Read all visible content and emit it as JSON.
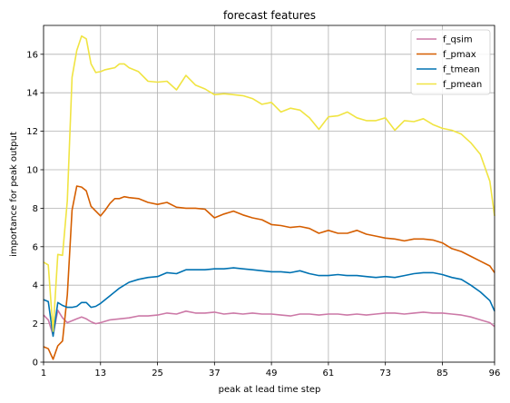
{
  "chart_data": {
    "type": "line",
    "title": "forecast features",
    "xlabel": "peak at lead time step",
    "ylabel": "importance for peak output",
    "xlim": [
      1,
      96
    ],
    "ylim": [
      0,
      17.5
    ],
    "xticks": [
      1,
      13,
      25,
      37,
      49,
      61,
      73,
      85,
      96
    ],
    "yticks": [
      0,
      2,
      4,
      6,
      8,
      10,
      12,
      14,
      16
    ],
    "grid": true,
    "legend_position": "top-right",
    "series": [
      {
        "name": "f_qsim",
        "color": "#cc79a7",
        "points": [
          [
            1,
            2.45
          ],
          [
            2,
            2.2
          ],
          [
            3,
            1.4
          ],
          [
            4,
            2.7
          ],
          [
            5,
            2.3
          ],
          [
            6,
            2.05
          ],
          [
            7,
            2.15
          ],
          [
            8,
            2.25
          ],
          [
            9,
            2.35
          ],
          [
            10,
            2.25
          ],
          [
            11,
            2.1
          ],
          [
            12,
            2.0
          ],
          [
            13,
            2.05
          ],
          [
            15,
            2.2
          ],
          [
            17,
            2.25
          ],
          [
            19,
            2.3
          ],
          [
            21,
            2.4
          ],
          [
            23,
            2.4
          ],
          [
            25,
            2.45
          ],
          [
            27,
            2.55
          ],
          [
            29,
            2.5
          ],
          [
            31,
            2.65
          ],
          [
            33,
            2.55
          ],
          [
            35,
            2.55
          ],
          [
            37,
            2.6
          ],
          [
            39,
            2.5
          ],
          [
            41,
            2.55
          ],
          [
            43,
            2.5
          ],
          [
            45,
            2.55
          ],
          [
            47,
            2.5
          ],
          [
            49,
            2.5
          ],
          [
            51,
            2.45
          ],
          [
            53,
            2.4
          ],
          [
            55,
            2.5
          ],
          [
            57,
            2.5
          ],
          [
            59,
            2.45
          ],
          [
            61,
            2.5
          ],
          [
            63,
            2.5
          ],
          [
            65,
            2.45
          ],
          [
            67,
            2.5
          ],
          [
            69,
            2.45
          ],
          [
            71,
            2.5
          ],
          [
            73,
            2.55
          ],
          [
            75,
            2.55
          ],
          [
            77,
            2.5
          ],
          [
            79,
            2.55
          ],
          [
            81,
            2.6
          ],
          [
            83,
            2.55
          ],
          [
            85,
            2.55
          ],
          [
            87,
            2.5
          ],
          [
            89,
            2.45
          ],
          [
            91,
            2.35
          ],
          [
            93,
            2.2
          ],
          [
            95,
            2.05
          ],
          [
            96,
            1.85
          ]
        ]
      },
      {
        "name": "f_pmax",
        "color": "#d55e00",
        "points": [
          [
            1,
            0.8
          ],
          [
            2,
            0.7
          ],
          [
            3,
            0.15
          ],
          [
            4,
            0.85
          ],
          [
            5,
            1.1
          ],
          [
            6,
            3.5
          ],
          [
            7,
            7.9
          ],
          [
            8,
            9.15
          ],
          [
            9,
            9.1
          ],
          [
            10,
            8.9
          ],
          [
            11,
            8.1
          ],
          [
            12,
            7.85
          ],
          [
            13,
            7.6
          ],
          [
            14,
            7.9
          ],
          [
            15,
            8.25
          ],
          [
            16,
            8.5
          ],
          [
            17,
            8.5
          ],
          [
            18,
            8.6
          ],
          [
            19,
            8.55
          ],
          [
            21,
            8.5
          ],
          [
            23,
            8.3
          ],
          [
            25,
            8.2
          ],
          [
            27,
            8.3
          ],
          [
            29,
            8.05
          ],
          [
            31,
            8.0
          ],
          [
            33,
            8.0
          ],
          [
            35,
            7.95
          ],
          [
            37,
            7.5
          ],
          [
            39,
            7.7
          ],
          [
            41,
            7.85
          ],
          [
            43,
            7.65
          ],
          [
            45,
            7.5
          ],
          [
            47,
            7.4
          ],
          [
            49,
            7.15
          ],
          [
            51,
            7.1
          ],
          [
            53,
            7.0
          ],
          [
            55,
            7.05
          ],
          [
            57,
            6.95
          ],
          [
            59,
            6.7
          ],
          [
            61,
            6.85
          ],
          [
            63,
            6.7
          ],
          [
            65,
            6.7
          ],
          [
            67,
            6.85
          ],
          [
            69,
            6.65
          ],
          [
            71,
            6.55
          ],
          [
            73,
            6.45
          ],
          [
            75,
            6.4
          ],
          [
            77,
            6.3
          ],
          [
            79,
            6.4
          ],
          [
            81,
            6.4
          ],
          [
            83,
            6.35
          ],
          [
            85,
            6.2
          ],
          [
            87,
            5.9
          ],
          [
            89,
            5.75
          ],
          [
            91,
            5.5
          ],
          [
            93,
            5.25
          ],
          [
            95,
            5.0
          ],
          [
            96,
            4.65
          ]
        ]
      },
      {
        "name": "f_tmean",
        "color": "#0072b2",
        "points": [
          [
            1,
            3.25
          ],
          [
            2,
            3.15
          ],
          [
            3,
            1.35
          ],
          [
            4,
            3.1
          ],
          [
            5,
            2.95
          ],
          [
            6,
            2.85
          ],
          [
            7,
            2.85
          ],
          [
            8,
            2.9
          ],
          [
            9,
            3.1
          ],
          [
            10,
            3.1
          ],
          [
            11,
            2.85
          ],
          [
            12,
            2.9
          ],
          [
            13,
            3.05
          ],
          [
            15,
            3.45
          ],
          [
            17,
            3.85
          ],
          [
            19,
            4.15
          ],
          [
            21,
            4.3
          ],
          [
            23,
            4.4
          ],
          [
            25,
            4.45
          ],
          [
            27,
            4.65
          ],
          [
            29,
            4.6
          ],
          [
            31,
            4.8
          ],
          [
            33,
            4.8
          ],
          [
            35,
            4.8
          ],
          [
            37,
            4.85
          ],
          [
            39,
            4.85
          ],
          [
            41,
            4.9
          ],
          [
            43,
            4.85
          ],
          [
            45,
            4.8
          ],
          [
            47,
            4.75
          ],
          [
            49,
            4.7
          ],
          [
            51,
            4.7
          ],
          [
            53,
            4.65
          ],
          [
            55,
            4.75
          ],
          [
            57,
            4.6
          ],
          [
            59,
            4.5
          ],
          [
            61,
            4.5
          ],
          [
            63,
            4.55
          ],
          [
            65,
            4.5
          ],
          [
            67,
            4.5
          ],
          [
            69,
            4.45
          ],
          [
            71,
            4.4
          ],
          [
            73,
            4.45
          ],
          [
            75,
            4.4
          ],
          [
            77,
            4.5
          ],
          [
            79,
            4.6
          ],
          [
            81,
            4.65
          ],
          [
            83,
            4.65
          ],
          [
            85,
            4.55
          ],
          [
            87,
            4.4
          ],
          [
            89,
            4.3
          ],
          [
            91,
            4.0
          ],
          [
            93,
            3.65
          ],
          [
            95,
            3.2
          ],
          [
            96,
            2.65
          ]
        ]
      },
      {
        "name": "f_pmean",
        "color": "#f0e442",
        "points": [
          [
            1,
            5.2
          ],
          [
            2,
            5.05
          ],
          [
            3,
            1.6
          ],
          [
            4,
            5.6
          ],
          [
            5,
            5.55
          ],
          [
            6,
            8.4
          ],
          [
            7,
            14.8
          ],
          [
            8,
            16.2
          ],
          [
            9,
            16.95
          ],
          [
            10,
            16.8
          ],
          [
            11,
            15.5
          ],
          [
            12,
            15.05
          ],
          [
            13,
            15.1
          ],
          [
            14,
            15.2
          ],
          [
            15,
            15.25
          ],
          [
            16,
            15.3
          ],
          [
            17,
            15.5
          ],
          [
            18,
            15.5
          ],
          [
            19,
            15.3
          ],
          [
            21,
            15.1
          ],
          [
            23,
            14.6
          ],
          [
            25,
            14.55
          ],
          [
            27,
            14.6
          ],
          [
            29,
            14.15
          ],
          [
            31,
            14.9
          ],
          [
            33,
            14.4
          ],
          [
            35,
            14.2
          ],
          [
            37,
            13.9
          ],
          [
            39,
            13.95
          ],
          [
            41,
            13.9
          ],
          [
            43,
            13.85
          ],
          [
            45,
            13.7
          ],
          [
            47,
            13.4
          ],
          [
            49,
            13.5
          ],
          [
            51,
            13.0
          ],
          [
            53,
            13.2
          ],
          [
            55,
            13.1
          ],
          [
            57,
            12.7
          ],
          [
            59,
            12.1
          ],
          [
            61,
            12.75
          ],
          [
            63,
            12.8
          ],
          [
            65,
            13.0
          ],
          [
            67,
            12.7
          ],
          [
            69,
            12.55
          ],
          [
            71,
            12.55
          ],
          [
            73,
            12.7
          ],
          [
            75,
            12.05
          ],
          [
            77,
            12.55
          ],
          [
            79,
            12.5
          ],
          [
            81,
            12.65
          ],
          [
            83,
            12.35
          ],
          [
            85,
            12.15
          ],
          [
            87,
            12.05
          ],
          [
            89,
            11.85
          ],
          [
            91,
            11.4
          ],
          [
            93,
            10.8
          ],
          [
            95,
            9.4
          ],
          [
            96,
            7.6
          ]
        ]
      }
    ]
  }
}
